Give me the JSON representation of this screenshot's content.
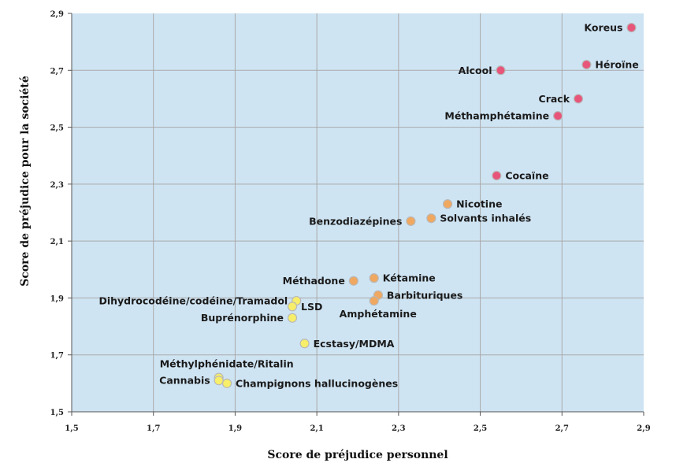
{
  "chart_data": {
    "type": "scatter",
    "title": "",
    "xlabel": "Score de préjudice personnel",
    "ylabel": "Score de préjudice pour la société",
    "xlim": [
      1.5,
      2.9
    ],
    "ylim": [
      1.5,
      2.9
    ],
    "xticks": [
      "1,5",
      "1,7",
      "1,9",
      "2,1",
      "2,3",
      "2,5",
      "2,7",
      "2,9"
    ],
    "yticks": [
      "1,5",
      "1,7",
      "1,9",
      "2,1",
      "2,3",
      "2,5",
      "2,7",
      "2,9"
    ],
    "grid": true,
    "plot_background": "#cfe4f3",
    "colors": {
      "red": "#e8557a",
      "orange": "#f0a860",
      "yellow": "#f7ee6a"
    },
    "points": [
      {
        "label": "Koreus",
        "x": 2.87,
        "y": 2.85,
        "color": "red",
        "anchor": "left"
      },
      {
        "label": "Héroïne",
        "x": 2.76,
        "y": 2.72,
        "color": "red",
        "anchor": "right"
      },
      {
        "label": "Alcool",
        "x": 2.55,
        "y": 2.7,
        "color": "red",
        "anchor": "left"
      },
      {
        "label": "Crack",
        "x": 2.74,
        "y": 2.6,
        "color": "red",
        "anchor": "left"
      },
      {
        "label": "Méthamphétamine",
        "x": 2.69,
        "y": 2.54,
        "color": "red",
        "anchor": "left"
      },
      {
        "label": "Cocaïne",
        "x": 2.54,
        "y": 2.33,
        "color": "red",
        "anchor": "right"
      },
      {
        "label": "Nicotine",
        "x": 2.42,
        "y": 2.23,
        "color": "orange",
        "anchor": "right"
      },
      {
        "label": "Solvants inhalés",
        "x": 2.38,
        "y": 2.18,
        "color": "orange",
        "anchor": "right"
      },
      {
        "label": "Benzodiazépines",
        "x": 2.33,
        "y": 2.17,
        "color": "orange",
        "anchor": "left"
      },
      {
        "label": "Méthadone",
        "x": 2.19,
        "y": 1.96,
        "color": "orange",
        "anchor": "left"
      },
      {
        "label": "Kétamine",
        "x": 2.24,
        "y": 1.97,
        "color": "orange",
        "anchor": "right"
      },
      {
        "label": "Barbituriques",
        "x": 2.25,
        "y": 1.91,
        "color": "orange",
        "anchor": "right"
      },
      {
        "label": "Amphétamine",
        "x": 2.24,
        "y": 1.89,
        "color": "orange",
        "anchor": "below"
      },
      {
        "label": "Dihydrocodéine/codéine/Tramadol",
        "x": 2.05,
        "y": 1.89,
        "color": "yellow",
        "anchor": "left"
      },
      {
        "label": "LSD",
        "x": 2.04,
        "y": 1.87,
        "color": "yellow",
        "anchor": "right"
      },
      {
        "label": "Buprénorphine",
        "x": 2.04,
        "y": 1.83,
        "color": "yellow",
        "anchor": "left"
      },
      {
        "label": "Ecstasy/MDMA",
        "x": 2.07,
        "y": 1.74,
        "color": "yellow",
        "anchor": "right"
      },
      {
        "label": "Méthylphénidate/Ritalin",
        "x": 1.86,
        "y": 1.62,
        "color": "yellow",
        "anchor": "above"
      },
      {
        "label": "Cannabis",
        "x": 1.86,
        "y": 1.61,
        "color": "yellow",
        "anchor": "left"
      },
      {
        "label": "Champignons hallucinogènes",
        "x": 1.88,
        "y": 1.6,
        "color": "yellow",
        "anchor": "right"
      }
    ]
  }
}
